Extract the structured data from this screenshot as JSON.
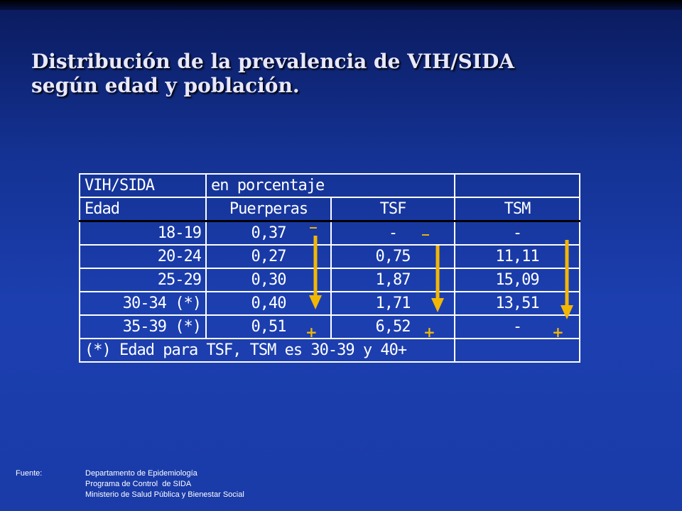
{
  "title": {
    "line1": "Distribución de la prevalencia de VIH/SIDA",
    "line2": "según edad y población."
  },
  "table": {
    "header1": [
      "VIH/SIDA",
      "en porcentaje",
      "",
      ""
    ],
    "header2": [
      "Edad",
      "Puerperas",
      "TSF",
      "TSM"
    ],
    "rows": [
      [
        "18-19",
        "0,37",
        "-",
        "-"
      ],
      [
        "20-24",
        "0,27",
        "0,75",
        "11,11"
      ],
      [
        "25-29",
        "0,30",
        "1,87",
        "15,09"
      ],
      [
        "30-34 (*)",
        "0,40",
        "1,71",
        "13,51"
      ],
      [
        "35-39 (*)",
        "0,51",
        "6,52",
        "-"
      ]
    ],
    "footnote": "(*) Edad para TSF, TSM es 30-39 y 40+"
  },
  "markers": {
    "minus": "_",
    "plus": "+",
    "arrow_color": "#f2b705"
  },
  "source": {
    "label": "Fuente:",
    "lines": [
      "Departamento de Epidemiología",
      "Programa de Control  de SIDA",
      "Ministerio de Salud Pública y Bienestar Social"
    ]
  }
}
